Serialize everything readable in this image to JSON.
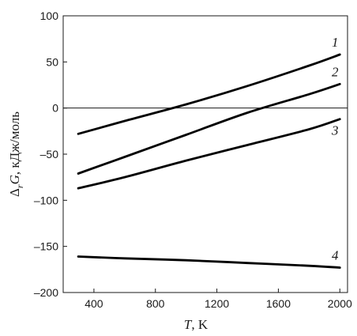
{
  "chart_data": {
    "type": "line",
    "xlabel_var": "T",
    "xlabel_unit": ", K",
    "ylabel_delta": "Δ",
    "ylabel_sub": "r",
    "ylabel_var": "G",
    "ylabel_unit": ", кДж/моль",
    "xlim": [
      200,
      2050
    ],
    "ylim": [
      -200,
      100
    ],
    "xticks": [
      400,
      800,
      1200,
      1600,
      2000
    ],
    "yticks": [
      100,
      50,
      0,
      -50,
      -100,
      -150,
      -200
    ],
    "ytick_labels": [
      "100",
      "50",
      "0",
      "–50",
      "–100",
      "–150",
      "–200"
    ],
    "zero_line": true,
    "series": [
      {
        "name": "1",
        "x": [
          298,
          600,
          1000,
          1400,
          1800,
          2000
        ],
        "y": [
          -28,
          -14,
          4,
          24,
          46,
          58
        ]
      },
      {
        "name": "2",
        "x": [
          298,
          600,
          1000,
          1400,
          1800,
          2000
        ],
        "y": [
          -71,
          -53,
          -29,
          -5,
          15,
          26
        ]
      },
      {
        "name": "3",
        "x": [
          298,
          600,
          1000,
          1400,
          1800,
          2000
        ],
        "y": [
          -87,
          -75,
          -57,
          -40,
          -23,
          -12
        ]
      },
      {
        "name": "4",
        "x": [
          298,
          600,
          1000,
          1400,
          1800,
          2000
        ],
        "y": [
          -161,
          -163,
          -165,
          -168,
          -171,
          -173
        ]
      }
    ]
  }
}
